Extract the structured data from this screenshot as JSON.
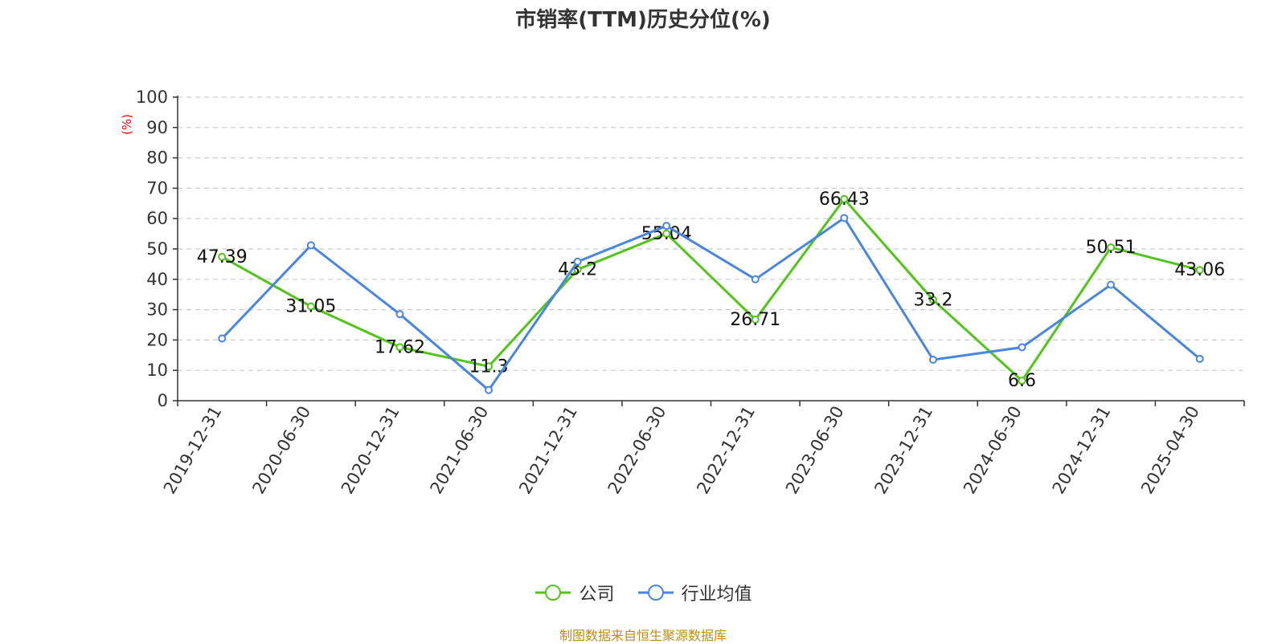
{
  "chart_data": {
    "type": "line",
    "title": "市销率(TTM)历史分位(%)",
    "ylabel": "(%)",
    "categories": [
      "2019-12-31",
      "2020-06-30",
      "2020-12-31",
      "2021-06-30",
      "2021-12-31",
      "2022-06-30",
      "2022-12-31",
      "2023-06-30",
      "2023-12-31",
      "2024-06-30",
      "2024-12-31",
      "2025-04-30"
    ],
    "ylim": [
      0,
      100
    ],
    "yticks": [
      0,
      10,
      20,
      30,
      40,
      50,
      60,
      70,
      80,
      90,
      100
    ],
    "grid": true,
    "legend_position": "bottom",
    "series": [
      {
        "name": "公司",
        "color": "#52c41a",
        "values": [
          47.39,
          31.05,
          17.62,
          11.3,
          43.2,
          55.04,
          26.71,
          66.43,
          33.2,
          6.6,
          50.51,
          43.06
        ],
        "labels": [
          "47.39",
          "31.05",
          "17.62",
          "11.3",
          "43.2",
          "55.04",
          "26.71",
          "66.43",
          "33.2",
          "6.6",
          "50.51",
          "43.06"
        ]
      },
      {
        "name": "行业均值",
        "color": "#4a86e0",
        "values": [
          20.5,
          51.2,
          28.5,
          3.5,
          45.8,
          57.6,
          40.0,
          60.2,
          13.5,
          17.6,
          38.2,
          13.8
        ]
      }
    ]
  },
  "source_note": "制图数据来自恒生聚源数据库"
}
